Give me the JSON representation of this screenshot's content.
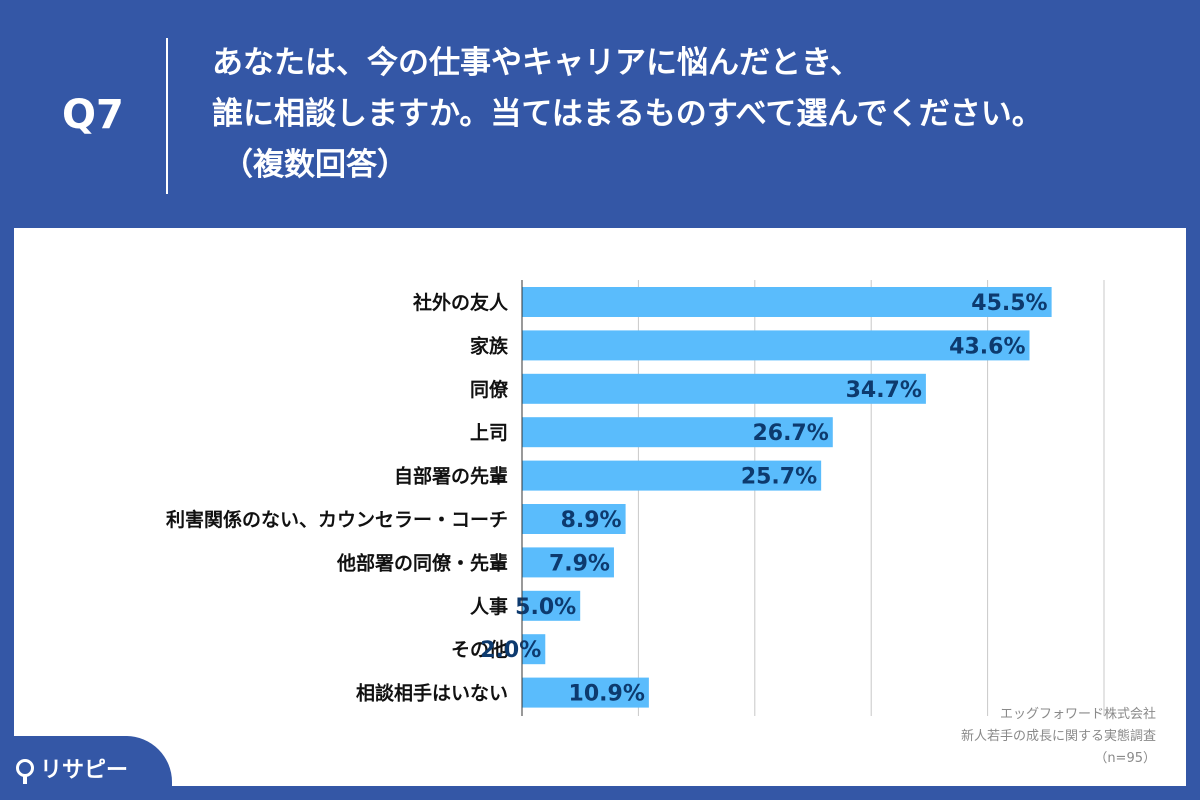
{
  "header": {
    "q_label": "Q7",
    "question_lines": [
      "あなたは、今の仕事やキャリアに悩んだとき、",
      "誰に相談しますか。当てはまるものすべて選んでください。",
      "（複数回答）"
    ]
  },
  "chart_data": {
    "type": "bar",
    "orientation": "horizontal",
    "categories": [
      "社外の友人",
      "家族",
      "同僚",
      "上司",
      "自部署の先輩",
      "利害関係のない、カウンセラー・コーチ",
      "他部署の同僚・先輩",
      "人事",
      "その他",
      "相談相手はいない"
    ],
    "values": [
      45.5,
      43.6,
      34.7,
      26.7,
      25.7,
      8.9,
      7.9,
      5.0,
      2.0,
      10.9
    ],
    "value_labels": [
      "45.5%",
      "43.6%",
      "34.7%",
      "26.7%",
      "25.7%",
      "8.9%",
      "7.9%",
      "5.0%",
      "2.0%",
      "10.9%"
    ],
    "xlim": [
      0,
      50
    ],
    "grid": true,
    "bar_color": "#5abcfc",
    "label_color": "#0d3a6e"
  },
  "source": {
    "company": "エッグフォワード株式会社",
    "survey": "新人若手の成長に関する実態調査",
    "sample": "（n=95）"
  },
  "logo": {
    "text": "リサピー",
    "icon": "map-pin-icon"
  },
  "colors": {
    "background": "#3457a6",
    "panel": "#ffffff"
  }
}
